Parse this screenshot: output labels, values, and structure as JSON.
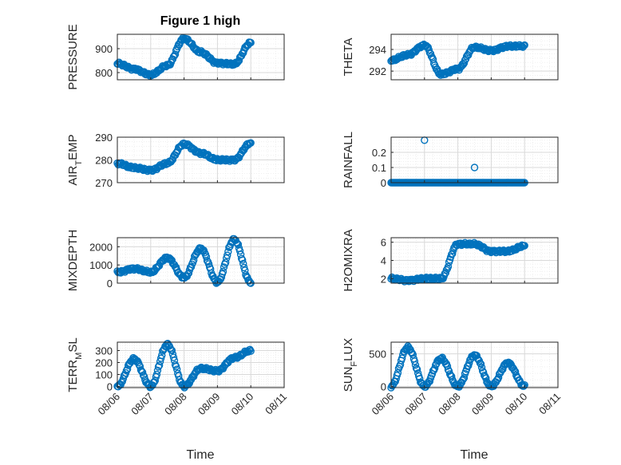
{
  "figure": {
    "title": "Figure 1 high"
  },
  "colors": {
    "marker": "#0072BD",
    "axis": "#262626",
    "grid": "#d9d9d9",
    "minor_grid": "#ececec"
  },
  "chart_data": [
    {
      "type": "scatter",
      "ylabel": "PRESSURE",
      "ylim": [
        770,
        960
      ],
      "yticks": [
        800,
        900
      ],
      "x": [
        "08/06",
        "08/06 12:00",
        "08/07",
        "08/07 12:00",
        "08/08",
        "08/08 12:00",
        "08/09",
        "08/09 12:00",
        "08/10"
      ],
      "y": [
        838,
        815,
        790,
        830,
        942,
        885,
        840,
        835,
        925
      ]
    },
    {
      "type": "scatter",
      "ylabel": "THETA",
      "ylim": [
        291.2,
        295.4
      ],
      "yticks": [
        292,
        294
      ],
      "x": [
        "08/06",
        "08/06 12:00",
        "08/07",
        "08/07 12:00",
        "08/08",
        "08/08 12:00",
        "08/09",
        "08/09 12:00",
        "08/10"
      ],
      "y": [
        293.0,
        293.5,
        294.4,
        291.7,
        292.2,
        294.2,
        293.9,
        294.3,
        294.3
      ]
    },
    {
      "type": "scatter",
      "ylabel": "AIR_TEMP",
      "ylim": [
        270,
        290
      ],
      "yticks": [
        270,
        280,
        290
      ],
      "x": [
        "08/06",
        "08/06 12:00",
        "08/07",
        "08/07 12:00",
        "08/08",
        "08/08 12:00",
        "08/09",
        "08/09 12:00",
        "08/10"
      ],
      "y": [
        278.5,
        276.5,
        275.5,
        278.5,
        287,
        283,
        280,
        280,
        287.5
      ]
    },
    {
      "type": "scatter",
      "ylabel": "RAINFALL",
      "ylim": [
        0,
        0.3
      ],
      "yticks": [
        0,
        0.1,
        0.2
      ],
      "x": [
        "08/06",
        "08/06 12:00",
        "08/07",
        "08/07 12:00",
        "08/08",
        "08/08 12:00",
        "08/09",
        "08/09 12:00",
        "08/10"
      ],
      "y": [
        0,
        0,
        0.28,
        0,
        0,
        0.1,
        0,
        0,
        0
      ]
    },
    {
      "type": "scatter",
      "ylabel": "MIXDEPTH",
      "ylim": [
        0,
        2500
      ],
      "yticks": [
        0,
        1000,
        2000
      ],
      "x": [
        "08/06",
        "08/06 12:00",
        "08/07",
        "08/07 12:00",
        "08/08",
        "08/08 12:00",
        "08/09",
        "08/09 12:00",
        "08/10"
      ],
      "y": [
        600,
        800,
        600,
        1400,
        300,
        1900,
        50,
        2400,
        30
      ]
    },
    {
      "type": "scatter",
      "ylabel": "H2OMIXRA",
      "ylim": [
        1.5,
        6.5
      ],
      "yticks": [
        2,
        4,
        6
      ],
      "x": [
        "08/06",
        "08/06 12:00",
        "08/07",
        "08/07 12:00",
        "08/08",
        "08/08 12:00",
        "08/09",
        "08/09 12:00",
        "08/10"
      ],
      "y": [
        2.0,
        1.8,
        2.0,
        2.0,
        5.8,
        5.8,
        5.0,
        5.0,
        5.6
      ]
    },
    {
      "type": "scatter",
      "ylabel": "TERR_MSL",
      "ylim": [
        -10,
        370
      ],
      "yticks": [
        0,
        100,
        200,
        300
      ],
      "x": [
        "08/06",
        "08/06 12:00",
        "08/07",
        "08/07 12:00",
        "08/08",
        "08/08 12:00",
        "08/09",
        "08/09 12:00",
        "08/10"
      ],
      "y": [
        0,
        230,
        0,
        350,
        0,
        150,
        130,
        240,
        300
      ]
    },
    {
      "type": "scatter",
      "ylabel": "SUN_FLUX",
      "ylim": [
        -20,
        680
      ],
      "yticks": [
        0,
        500
      ],
      "x": [
        "08/06",
        "08/06 12:00",
        "08/07",
        "08/07 12:00",
        "08/08",
        "08/08 12:00",
        "08/09",
        "08/09 12:00",
        "08/10"
      ],
      "y": [
        0,
        600,
        0,
        430,
        0,
        480,
        0,
        360,
        0
      ]
    }
  ],
  "x_axis": {
    "tick_labels": [
      "08/06",
      "08/07",
      "08/08",
      "08/09",
      "08/10",
      "08/11"
    ],
    "xlabel": "Time"
  }
}
